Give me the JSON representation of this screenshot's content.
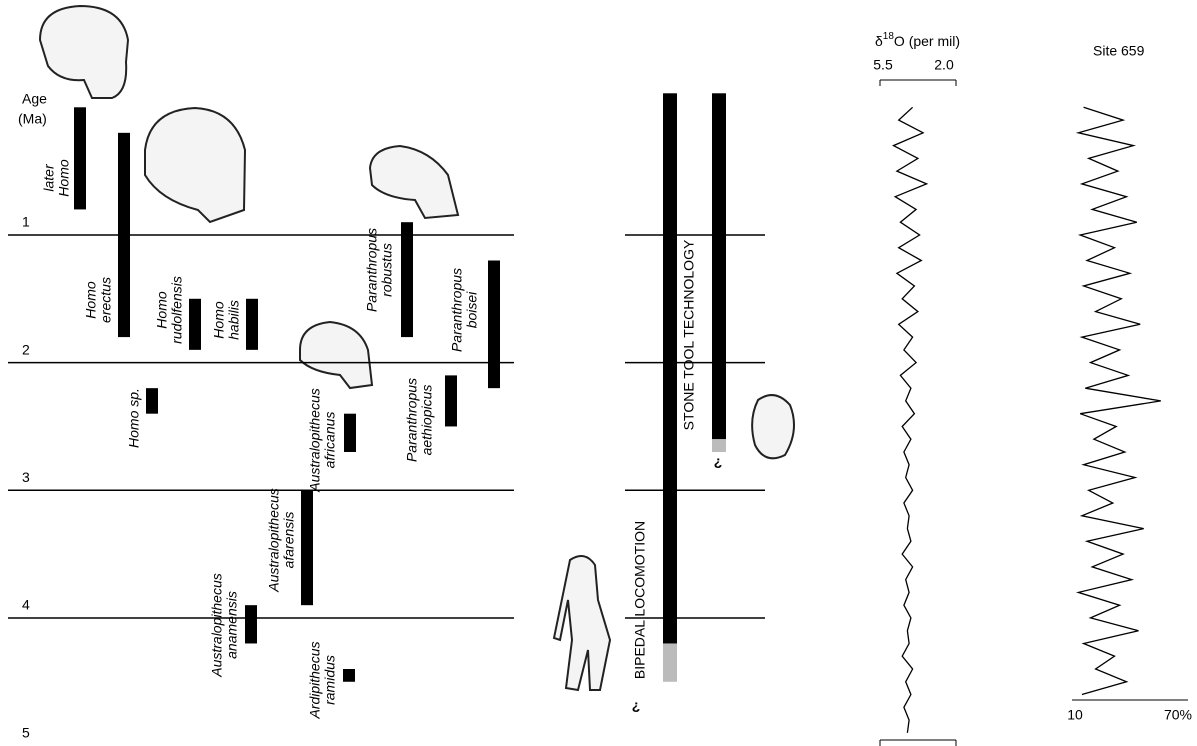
{
  "chart_data": {
    "type": "range",
    "ylabel": [
      "Age",
      "(Ma)"
    ],
    "ylim": [
      0,
      5
    ],
    "yticks": [
      1,
      2,
      3,
      4,
      5
    ],
    "species": [
      {
        "label": [
          "later",
          "Homo"
        ],
        "range": [
          0,
          0.8
        ]
      },
      {
        "label": [
          "Homo",
          "erectus"
        ],
        "range": [
          0.2,
          1.8
        ]
      },
      {
        "label": [
          "Homo",
          "rudolfensis"
        ],
        "range": [
          1.5,
          1.9
        ]
      },
      {
        "label": [
          "Homo",
          "habilis"
        ],
        "range": [
          1.5,
          1.9
        ]
      },
      {
        "label": [
          "Homo sp."
        ],
        "range": [
          2.2,
          2.4
        ]
      },
      {
        "label": [
          "Australopithecus",
          "africanus"
        ],
        "range": [
          2.4,
          2.7
        ]
      },
      {
        "label": [
          "Australopithecus",
          "afarensis"
        ],
        "range": [
          3.0,
          3.9
        ]
      },
      {
        "label": [
          "Australopithecus",
          "anamensis"
        ],
        "range": [
          3.9,
          4.2
        ]
      },
      {
        "label": [
          "Ardipithecus",
          "ramidus"
        ],
        "range": [
          4.4,
          4.5
        ]
      },
      {
        "label": [
          "Paranthropus",
          "robustus"
        ],
        "range": [
          0.9,
          1.8
        ]
      },
      {
        "label": [
          "Paranthropus",
          "boisei"
        ],
        "range": [
          1.2,
          2.2
        ]
      },
      {
        "label": [
          "Paranthropus",
          "aethiopicus"
        ],
        "range": [
          2.1,
          2.5
        ]
      }
    ],
    "traits": [
      {
        "label": "BIPEDAL LOCOMOTION",
        "range": [
          0,
          4.2
        ],
        "uncertain": [
          4.2,
          4.5
        ]
      },
      {
        "label": "STONE TOOL TECHNOLOGY",
        "range": [
          0,
          2.6
        ],
        "uncertain": [
          2.6,
          2.7
        ]
      }
    ],
    "uncertain_mark": "?",
    "isotope": {
      "title": [
        "δ",
        "18",
        "O (per mil)"
      ],
      "xlim": [
        5.5,
        2.0
      ],
      "xticks": [
        5.5,
        {
          "value": 2.0,
          "label": "2.0"
        }
      ],
      "ages": [
        0,
        0.1,
        0.2,
        0.3,
        0.4,
        0.5,
        0.6,
        0.7,
        0.8,
        0.9,
        1,
        1.1,
        1.2,
        1.3,
        1.4,
        1.5,
        1.6,
        1.7,
        1.8,
        1.9,
        2,
        2.1,
        2.2,
        2.3,
        2.4,
        2.5,
        2.6,
        2.7,
        2.8,
        2.9,
        3,
        3.1,
        3.2,
        3.3,
        3.4,
        3.5,
        3.6,
        3.7,
        3.8,
        3.9,
        4,
        4.1,
        4.2,
        4.3,
        4.4,
        4.5,
        4.6,
        4.7,
        4.8,
        4.9
      ],
      "values": [
        3.8,
        4.6,
        3.2,
        4.9,
        3.5,
        4.7,
        3.0,
        4.8,
        3.6,
        4.5,
        3.4,
        4.6,
        3.3,
        4.7,
        3.7,
        4.4,
        3.5,
        4.6,
        3.8,
        4.3,
        3.6,
        4.5,
        3.9,
        4.2,
        3.7,
        4.4,
        3.9,
        4.3,
        4.0,
        4.2,
        3.8,
        4.3,
        4.0,
        4.1,
        3.9,
        4.4,
        3.8,
        4.2,
        4.0,
        4.3,
        3.9,
        4.1,
        4.0,
        4.4,
        3.8,
        4.2,
        3.9,
        4.3,
        4.0,
        4.1
      ]
    },
    "dust": {
      "title": "Site 659",
      "xlim": [
        10,
        70
      ],
      "xticks": [
        10,
        {
          "value": 70,
          "label": "70%"
        }
      ],
      "ages": [
        0,
        0.1,
        0.2,
        0.3,
        0.4,
        0.5,
        0.6,
        0.7,
        0.8,
        0.9,
        1,
        1.1,
        1.2,
        1.3,
        1.4,
        1.5,
        1.6,
        1.7,
        1.8,
        1.9,
        2,
        2.1,
        2.2,
        2.3,
        2.4,
        2.5,
        2.6,
        2.7,
        2.8,
        2.9,
        3,
        3.1,
        3.2,
        3.3,
        3.4,
        3.5,
        3.6,
        3.7,
        3.8,
        3.9,
        4,
        4.1,
        4.2,
        4.3,
        4.4,
        4.5,
        4.6
      ],
      "values": [
        15,
        38,
        12,
        44,
        18,
        35,
        14,
        40,
        20,
        46,
        13,
        33,
        17,
        42,
        15,
        37,
        22,
        48,
        14,
        36,
        19,
        41,
        16,
        60,
        13,
        34,
        21,
        39,
        15,
        45,
        18,
        32,
        14,
        50,
        17,
        38,
        20,
        43,
        12,
        36,
        19,
        47,
        15,
        33,
        22,
        40,
        14
      ]
    }
  }
}
